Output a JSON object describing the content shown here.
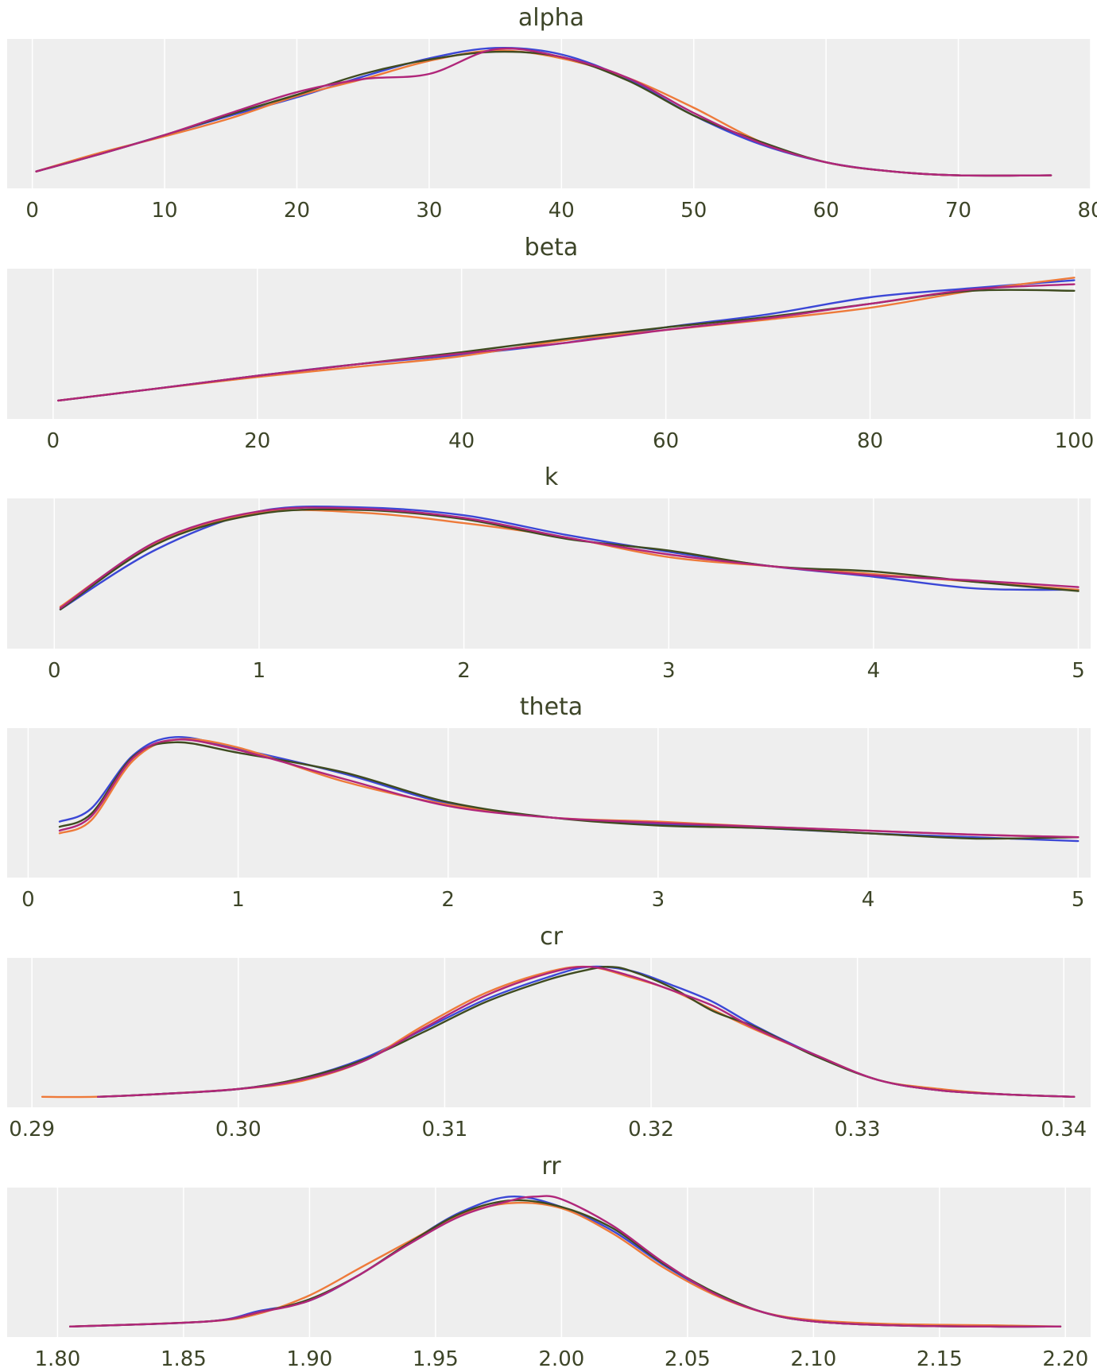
{
  "colors": {
    "background": "#ffffff",
    "panel": "#eeeeee",
    "grid": "#ffffff",
    "text": "#3d4528",
    "chains": [
      "#3b47d6",
      "#ee7a3a",
      "#3f4b20",
      "#b0267a"
    ]
  },
  "chart_data": [
    {
      "type": "line",
      "title": "alpha",
      "xlabel": "",
      "ylabel": "",
      "xlim": [
        -1.9,
        80
      ],
      "grid": true,
      "ticks": [
        "0",
        "10",
        "20",
        "30",
        "40",
        "50",
        "60",
        "70",
        "80"
      ],
      "tick_values": [
        0,
        10,
        20,
        30,
        40,
        50,
        60,
        70,
        80
      ],
      "series": [
        {
          "x": [
            0.3,
            5,
            10,
            15,
            20,
            25,
            30,
            35,
            40,
            45,
            50,
            55,
            60,
            65,
            70,
            77
          ],
          "y": [
            0.05,
            0.18,
            0.33,
            0.48,
            0.62,
            0.78,
            0.92,
            1.0,
            0.95,
            0.76,
            0.48,
            0.26,
            0.12,
            0.05,
            0.02,
            0.02
          ]
        },
        {
          "x": [
            0.3,
            5,
            10,
            15,
            20,
            25,
            30,
            35,
            40,
            45,
            50,
            55,
            60,
            65,
            70,
            77
          ],
          "y": [
            0.05,
            0.19,
            0.32,
            0.46,
            0.63,
            0.76,
            0.9,
            0.98,
            0.92,
            0.77,
            0.54,
            0.28,
            0.12,
            0.05,
            0.02,
            0.02
          ]
        },
        {
          "x": [
            0.3,
            5,
            10,
            15,
            20,
            25,
            30,
            35,
            40,
            45,
            50,
            55,
            60,
            65,
            70,
            77
          ],
          "y": [
            0.05,
            0.18,
            0.33,
            0.49,
            0.64,
            0.8,
            0.91,
            0.97,
            0.93,
            0.75,
            0.48,
            0.28,
            0.12,
            0.05,
            0.02,
            0.02
          ]
        },
        {
          "x": [
            0.3,
            5,
            10,
            15,
            20,
            25,
            30,
            35,
            40,
            45,
            50,
            55,
            60,
            65,
            70,
            77
          ],
          "y": [
            0.05,
            0.18,
            0.33,
            0.5,
            0.66,
            0.76,
            0.8,
            0.99,
            0.93,
            0.77,
            0.5,
            0.27,
            0.12,
            0.05,
            0.02,
            0.02
          ]
        }
      ]
    },
    {
      "type": "line",
      "title": "beta",
      "xlabel": "",
      "ylabel": "",
      "xlim": [
        -4.5,
        101.6
      ],
      "grid": true,
      "ticks": [
        "0",
        "20",
        "40",
        "60",
        "80",
        "100"
      ],
      "tick_values": [
        0,
        20,
        40,
        60,
        80,
        100
      ],
      "series": [
        {
          "x": [
            0.5,
            10,
            20,
            30,
            40,
            50,
            60,
            70,
            80,
            90,
            100
          ],
          "y": [
            0.06,
            0.15,
            0.25,
            0.34,
            0.41,
            0.5,
            0.62,
            0.72,
            0.85,
            0.92,
            0.98
          ]
        },
        {
          "x": [
            0.5,
            10,
            20,
            30,
            40,
            50,
            60,
            70,
            80,
            90,
            100
          ],
          "y": [
            0.06,
            0.15,
            0.24,
            0.32,
            0.4,
            0.52,
            0.6,
            0.68,
            0.77,
            0.9,
            1.0
          ]
        },
        {
          "x": [
            0.5,
            10,
            20,
            30,
            40,
            50,
            60,
            70,
            80,
            90,
            100
          ],
          "y": [
            0.06,
            0.15,
            0.25,
            0.34,
            0.43,
            0.53,
            0.62,
            0.7,
            0.8,
            0.9,
            0.9
          ]
        },
        {
          "x": [
            0.5,
            10,
            20,
            30,
            40,
            50,
            60,
            70,
            80,
            90,
            100
          ],
          "y": [
            0.06,
            0.15,
            0.25,
            0.34,
            0.42,
            0.5,
            0.6,
            0.69,
            0.8,
            0.91,
            0.95
          ]
        }
      ]
    },
    {
      "type": "line",
      "title": "k",
      "xlabel": "",
      "ylabel": "",
      "xlim": [
        -0.23,
        5.06
      ],
      "grid": true,
      "ticks": [
        "0",
        "1",
        "2",
        "3",
        "4",
        "5"
      ],
      "tick_values": [
        0,
        1,
        2,
        3,
        4,
        5
      ],
      "series": [
        {
          "x": [
            0.03,
            0.5,
            1,
            1.5,
            2,
            2.5,
            3,
            3.5,
            4,
            4.5,
            5
          ],
          "y": [
            0.22,
            0.68,
            0.97,
            1.0,
            0.94,
            0.79,
            0.66,
            0.55,
            0.47,
            0.38,
            0.37
          ]
        },
        {
          "x": [
            0.03,
            0.5,
            1,
            1.5,
            2,
            2.5,
            3,
            3.5,
            4,
            4.5,
            5
          ],
          "y": [
            0.24,
            0.73,
            0.96,
            0.96,
            0.88,
            0.77,
            0.62,
            0.55,
            0.49,
            0.43,
            0.37
          ]
        },
        {
          "x": [
            0.03,
            0.5,
            1,
            1.5,
            2,
            2.5,
            3,
            3.5,
            4,
            4.5,
            5
          ],
          "y": [
            0.22,
            0.72,
            0.95,
            0.98,
            0.91,
            0.76,
            0.67,
            0.55,
            0.51,
            0.43,
            0.36
          ]
        },
        {
          "x": [
            0.03,
            0.5,
            1,
            1.5,
            2,
            2.5,
            3,
            3.5,
            4,
            4.5,
            5
          ],
          "y": [
            0.23,
            0.74,
            0.97,
            0.99,
            0.92,
            0.77,
            0.64,
            0.55,
            0.48,
            0.44,
            0.39
          ]
        }
      ]
    },
    {
      "type": "line",
      "title": "theta",
      "xlabel": "",
      "ylabel": "",
      "xlim": [
        -0.1,
        5.06
      ],
      "grid": true,
      "ticks": [
        "0",
        "1",
        "2",
        "3",
        "4",
        "5"
      ],
      "tick_values": [
        0,
        1,
        2,
        3,
        4,
        5
      ],
      "series": [
        {
          "x": [
            0.15,
            0.3,
            0.5,
            0.7,
            1.0,
            1.5,
            2.0,
            2.5,
            3.0,
            3.5,
            4.0,
            4.5,
            5.0
          ],
          "y": [
            0.35,
            0.45,
            0.86,
            1.0,
            0.91,
            0.72,
            0.49,
            0.38,
            0.33,
            0.3,
            0.26,
            0.23,
            0.2
          ]
        },
        {
          "x": [
            0.15,
            0.3,
            0.5,
            0.7,
            1.0,
            1.5,
            2.0,
            2.5,
            3.0,
            3.5,
            4.0,
            4.5,
            5.0
          ],
          "y": [
            0.26,
            0.36,
            0.82,
            0.98,
            0.92,
            0.66,
            0.48,
            0.38,
            0.35,
            0.31,
            0.28,
            0.25,
            0.23
          ]
        },
        {
          "x": [
            0.15,
            0.3,
            0.5,
            0.7,
            1.0,
            1.5,
            2.0,
            2.5,
            3.0,
            3.5,
            4.0,
            4.5,
            5.0
          ],
          "y": [
            0.31,
            0.41,
            0.85,
            0.96,
            0.88,
            0.73,
            0.5,
            0.38,
            0.32,
            0.3,
            0.26,
            0.22,
            0.23
          ]
        },
        {
          "x": [
            0.15,
            0.3,
            0.5,
            0.7,
            1.0,
            1.5,
            2.0,
            2.5,
            3.0,
            3.5,
            4.0,
            4.5,
            5.0
          ],
          "y": [
            0.28,
            0.39,
            0.84,
            0.98,
            0.9,
            0.68,
            0.47,
            0.38,
            0.34,
            0.31,
            0.28,
            0.25,
            0.23
          ]
        }
      ]
    },
    {
      "type": "line",
      "title": "cr",
      "xlabel": "",
      "ylabel": "",
      "xlim": [
        0.2888,
        0.3413
      ],
      "grid": true,
      "ticks": [
        "0.29",
        "0.30",
        "0.31",
        "0.32",
        "0.33",
        "0.34"
      ],
      "tick_values": [
        0.29,
        0.3,
        0.31,
        0.32,
        0.33,
        0.34
      ],
      "series": [
        {
          "x": [
            0.2932,
            0.296,
            0.3,
            0.303,
            0.306,
            0.309,
            0.312,
            0.315,
            0.317,
            0.319,
            0.321,
            0.323,
            0.325,
            0.328,
            0.331,
            0.334,
            0.337,
            0.3405
          ],
          "y": [
            0.0,
            0.02,
            0.06,
            0.14,
            0.29,
            0.52,
            0.75,
            0.92,
            1.0,
            0.97,
            0.86,
            0.73,
            0.55,
            0.32,
            0.13,
            0.05,
            0.02,
            0.0
          ]
        },
        {
          "x": [
            0.2905,
            0.293,
            0.296,
            0.3,
            0.303,
            0.306,
            0.309,
            0.312,
            0.315,
            0.317,
            0.319,
            0.321,
            0.323,
            0.325,
            0.328,
            0.331,
            0.334,
            0.337,
            0.3405
          ],
          "y": [
            0.0,
            0.0,
            0.02,
            0.06,
            0.12,
            0.27,
            0.55,
            0.8,
            0.96,
            1.0,
            0.92,
            0.82,
            0.67,
            0.52,
            0.32,
            0.13,
            0.06,
            0.02,
            0.0
          ]
        },
        {
          "x": [
            0.2932,
            0.296,
            0.3,
            0.303,
            0.306,
            0.309,
            0.312,
            0.315,
            0.317,
            0.318,
            0.319,
            0.321,
            0.323,
            0.325,
            0.328,
            0.331,
            0.334,
            0.337,
            0.3405
          ],
          "y": [
            0.0,
            0.02,
            0.06,
            0.14,
            0.28,
            0.5,
            0.73,
            0.9,
            0.98,
            1.0,
            0.97,
            0.84,
            0.66,
            0.54,
            0.31,
            0.13,
            0.05,
            0.02,
            0.0
          ]
        },
        {
          "x": [
            0.2932,
            0.296,
            0.3,
            0.303,
            0.306,
            0.309,
            0.312,
            0.315,
            0.317,
            0.319,
            0.321,
            0.323,
            0.325,
            0.328,
            0.331,
            0.334,
            0.337,
            0.3405
          ],
          "y": [
            0.0,
            0.02,
            0.06,
            0.13,
            0.27,
            0.53,
            0.78,
            0.95,
            1.0,
            0.93,
            0.82,
            0.7,
            0.53,
            0.32,
            0.13,
            0.05,
            0.02,
            0.0
          ]
        }
      ]
    },
    {
      "type": "line",
      "title": "rr",
      "xlabel": "",
      "ylabel": "",
      "xlim": [
        1.78,
        2.21
      ],
      "grid": true,
      "ticks": [
        "1.80",
        "1.85",
        "1.90",
        "1.95",
        "2.00",
        "2.05",
        "2.10",
        "2.15",
        "2.20"
      ],
      "tick_values": [
        1.8,
        1.85,
        1.9,
        1.95,
        2.0,
        2.05,
        2.1,
        2.15,
        2.2
      ],
      "series": [
        {
          "x": [
            1.805,
            1.86,
            1.88,
            1.9,
            1.92,
            1.94,
            1.96,
            1.98,
            2.0,
            2.02,
            2.04,
            2.06,
            2.08,
            2.1,
            2.13,
            2.17,
            2.198
          ],
          "y": [
            0.0,
            0.04,
            0.12,
            0.2,
            0.4,
            0.65,
            0.88,
            1.0,
            0.92,
            0.74,
            0.48,
            0.26,
            0.11,
            0.04,
            0.01,
            0.0,
            0.0
          ]
        },
        {
          "x": [
            1.805,
            1.86,
            1.88,
            1.9,
            1.92,
            1.94,
            1.96,
            1.98,
            2.0,
            2.02,
            2.04,
            2.06,
            2.08,
            2.1,
            2.13,
            2.17,
            2.198
          ],
          "y": [
            0.0,
            0.04,
            0.1,
            0.24,
            0.45,
            0.66,
            0.86,
            0.95,
            0.91,
            0.72,
            0.46,
            0.25,
            0.11,
            0.05,
            0.02,
            0.01,
            0.0
          ]
        },
        {
          "x": [
            1.805,
            1.86,
            1.88,
            1.9,
            1.92,
            1.94,
            1.96,
            1.98,
            2.0,
            2.02,
            2.04,
            2.06,
            2.08,
            2.1,
            2.13,
            2.17,
            2.198
          ],
          "y": [
            0.0,
            0.04,
            0.11,
            0.21,
            0.4,
            0.65,
            0.87,
            0.97,
            0.92,
            0.76,
            0.49,
            0.27,
            0.11,
            0.04,
            0.01,
            0.0,
            0.0
          ]
        },
        {
          "x": [
            1.805,
            1.86,
            1.88,
            1.9,
            1.92,
            1.94,
            1.96,
            1.98,
            1.99,
            2.0,
            2.02,
            2.04,
            2.06,
            2.08,
            2.1,
            2.13,
            2.17,
            2.198
          ],
          "y": [
            0.0,
            0.04,
            0.11,
            0.2,
            0.4,
            0.64,
            0.85,
            0.97,
            1.0,
            0.98,
            0.78,
            0.5,
            0.26,
            0.11,
            0.04,
            0.01,
            0.0,
            0.0
          ]
        }
      ]
    }
  ]
}
